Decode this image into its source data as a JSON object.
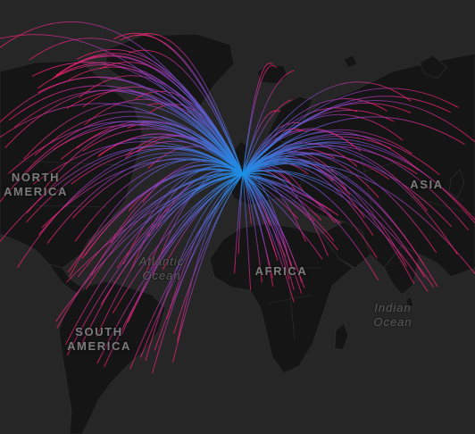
{
  "map": {
    "colors": {
      "land": "#151515",
      "water": "#262627",
      "flow_near": "#1a8fe6",
      "flow_far": "#ff1f6a"
    },
    "labels": {
      "north_america": [
        "NORTH",
        "AMERICA"
      ],
      "south_america": [
        "SOUTH",
        "AMERICA"
      ],
      "africa": "AFRICA",
      "asia": "ASIA",
      "atlantic_ocean": [
        "Atlantic",
        "Ocean"
      ],
      "indian_ocean": [
        "Indian",
        "Ocean"
      ]
    }
  }
}
